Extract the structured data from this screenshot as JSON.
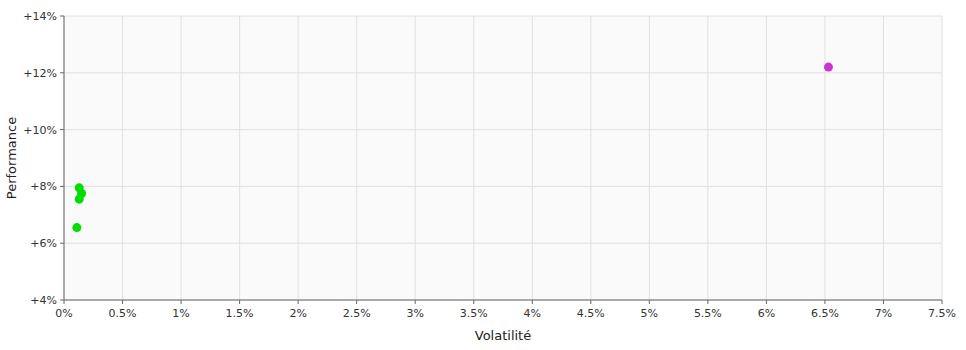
{
  "chart_data": {
    "type": "scatter",
    "x_label": "Volatilité",
    "y_label": "Performance",
    "series": [
      {
        "color": "#00dd00",
        "x": [
          0.0013,
          0.0015,
          0.0013,
          0.0011
        ],
        "values": [
          0.0795,
          0.0775,
          0.0755,
          0.0655
        ]
      },
      {
        "color": "#cc33cc",
        "x": [
          0.0653
        ],
        "values": [
          0.122
        ]
      }
    ],
    "xlim": [
      0.0,
      0.075
    ],
    "ylim": [
      0.04,
      0.14
    ],
    "xticks": [
      {
        "value": 0.0,
        "label": "0%"
      },
      {
        "value": 0.005,
        "label": "0.5%"
      },
      {
        "value": 0.01,
        "label": "1%"
      },
      {
        "value": 0.015,
        "label": "1.5%"
      },
      {
        "value": 0.02,
        "label": "2%"
      },
      {
        "value": 0.025,
        "label": "2.5%"
      },
      {
        "value": 0.03,
        "label": "3%"
      },
      {
        "value": 0.035,
        "label": "3.5%"
      },
      {
        "value": 0.04,
        "label": "4%"
      },
      {
        "value": 0.045,
        "label": "4.5%"
      },
      {
        "value": 0.05,
        "label": "5%"
      },
      {
        "value": 0.055,
        "label": "5.5%"
      },
      {
        "value": 0.06,
        "label": "6%"
      },
      {
        "value": 0.065,
        "label": "6.5%"
      },
      {
        "value": 0.07,
        "label": "7%"
      },
      {
        "value": 0.075,
        "label": "7.5%"
      }
    ],
    "yticks": [
      {
        "value": 0.04,
        "label": "+4%"
      },
      {
        "value": 0.06,
        "label": "+6%"
      },
      {
        "value": 0.08,
        "label": "+8%"
      },
      {
        "value": 0.1,
        "label": "+10%"
      },
      {
        "value": 0.12,
        "label": "+12%"
      },
      {
        "value": 0.14,
        "label": "+14%"
      }
    ],
    "grid": true
  }
}
